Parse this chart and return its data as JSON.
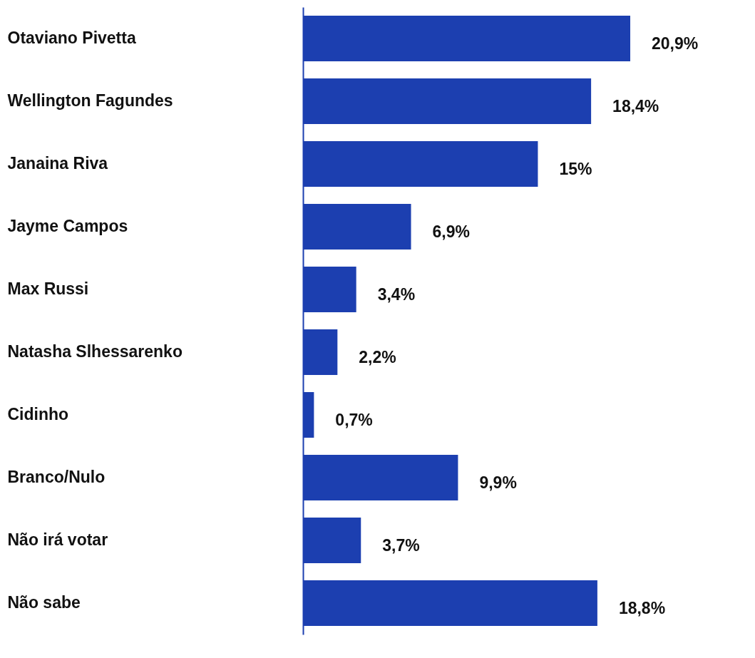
{
  "chart_data": {
    "type": "bar",
    "orientation": "horizontal",
    "categories": [
      "Otaviano Pivetta",
      "Wellington Fagundes",
      "Janaina Riva",
      "Jayme Campos",
      "Max Russi",
      "Natasha Slhessarenko",
      "Cidinho",
      "Branco/Nulo",
      "Não irá votar",
      "Não sabe"
    ],
    "values": [
      20.9,
      18.4,
      15,
      6.9,
      3.4,
      2.2,
      0.7,
      9.9,
      3.7,
      18.8
    ],
    "value_labels": [
      "20,9%",
      "18,4%",
      "15%",
      "6,9%",
      "3,4%",
      "2,2%",
      "0,7%",
      "9,9%",
      "3,7%",
      "18,8%"
    ],
    "color": "#1c3fb0",
    "grid": false
  }
}
